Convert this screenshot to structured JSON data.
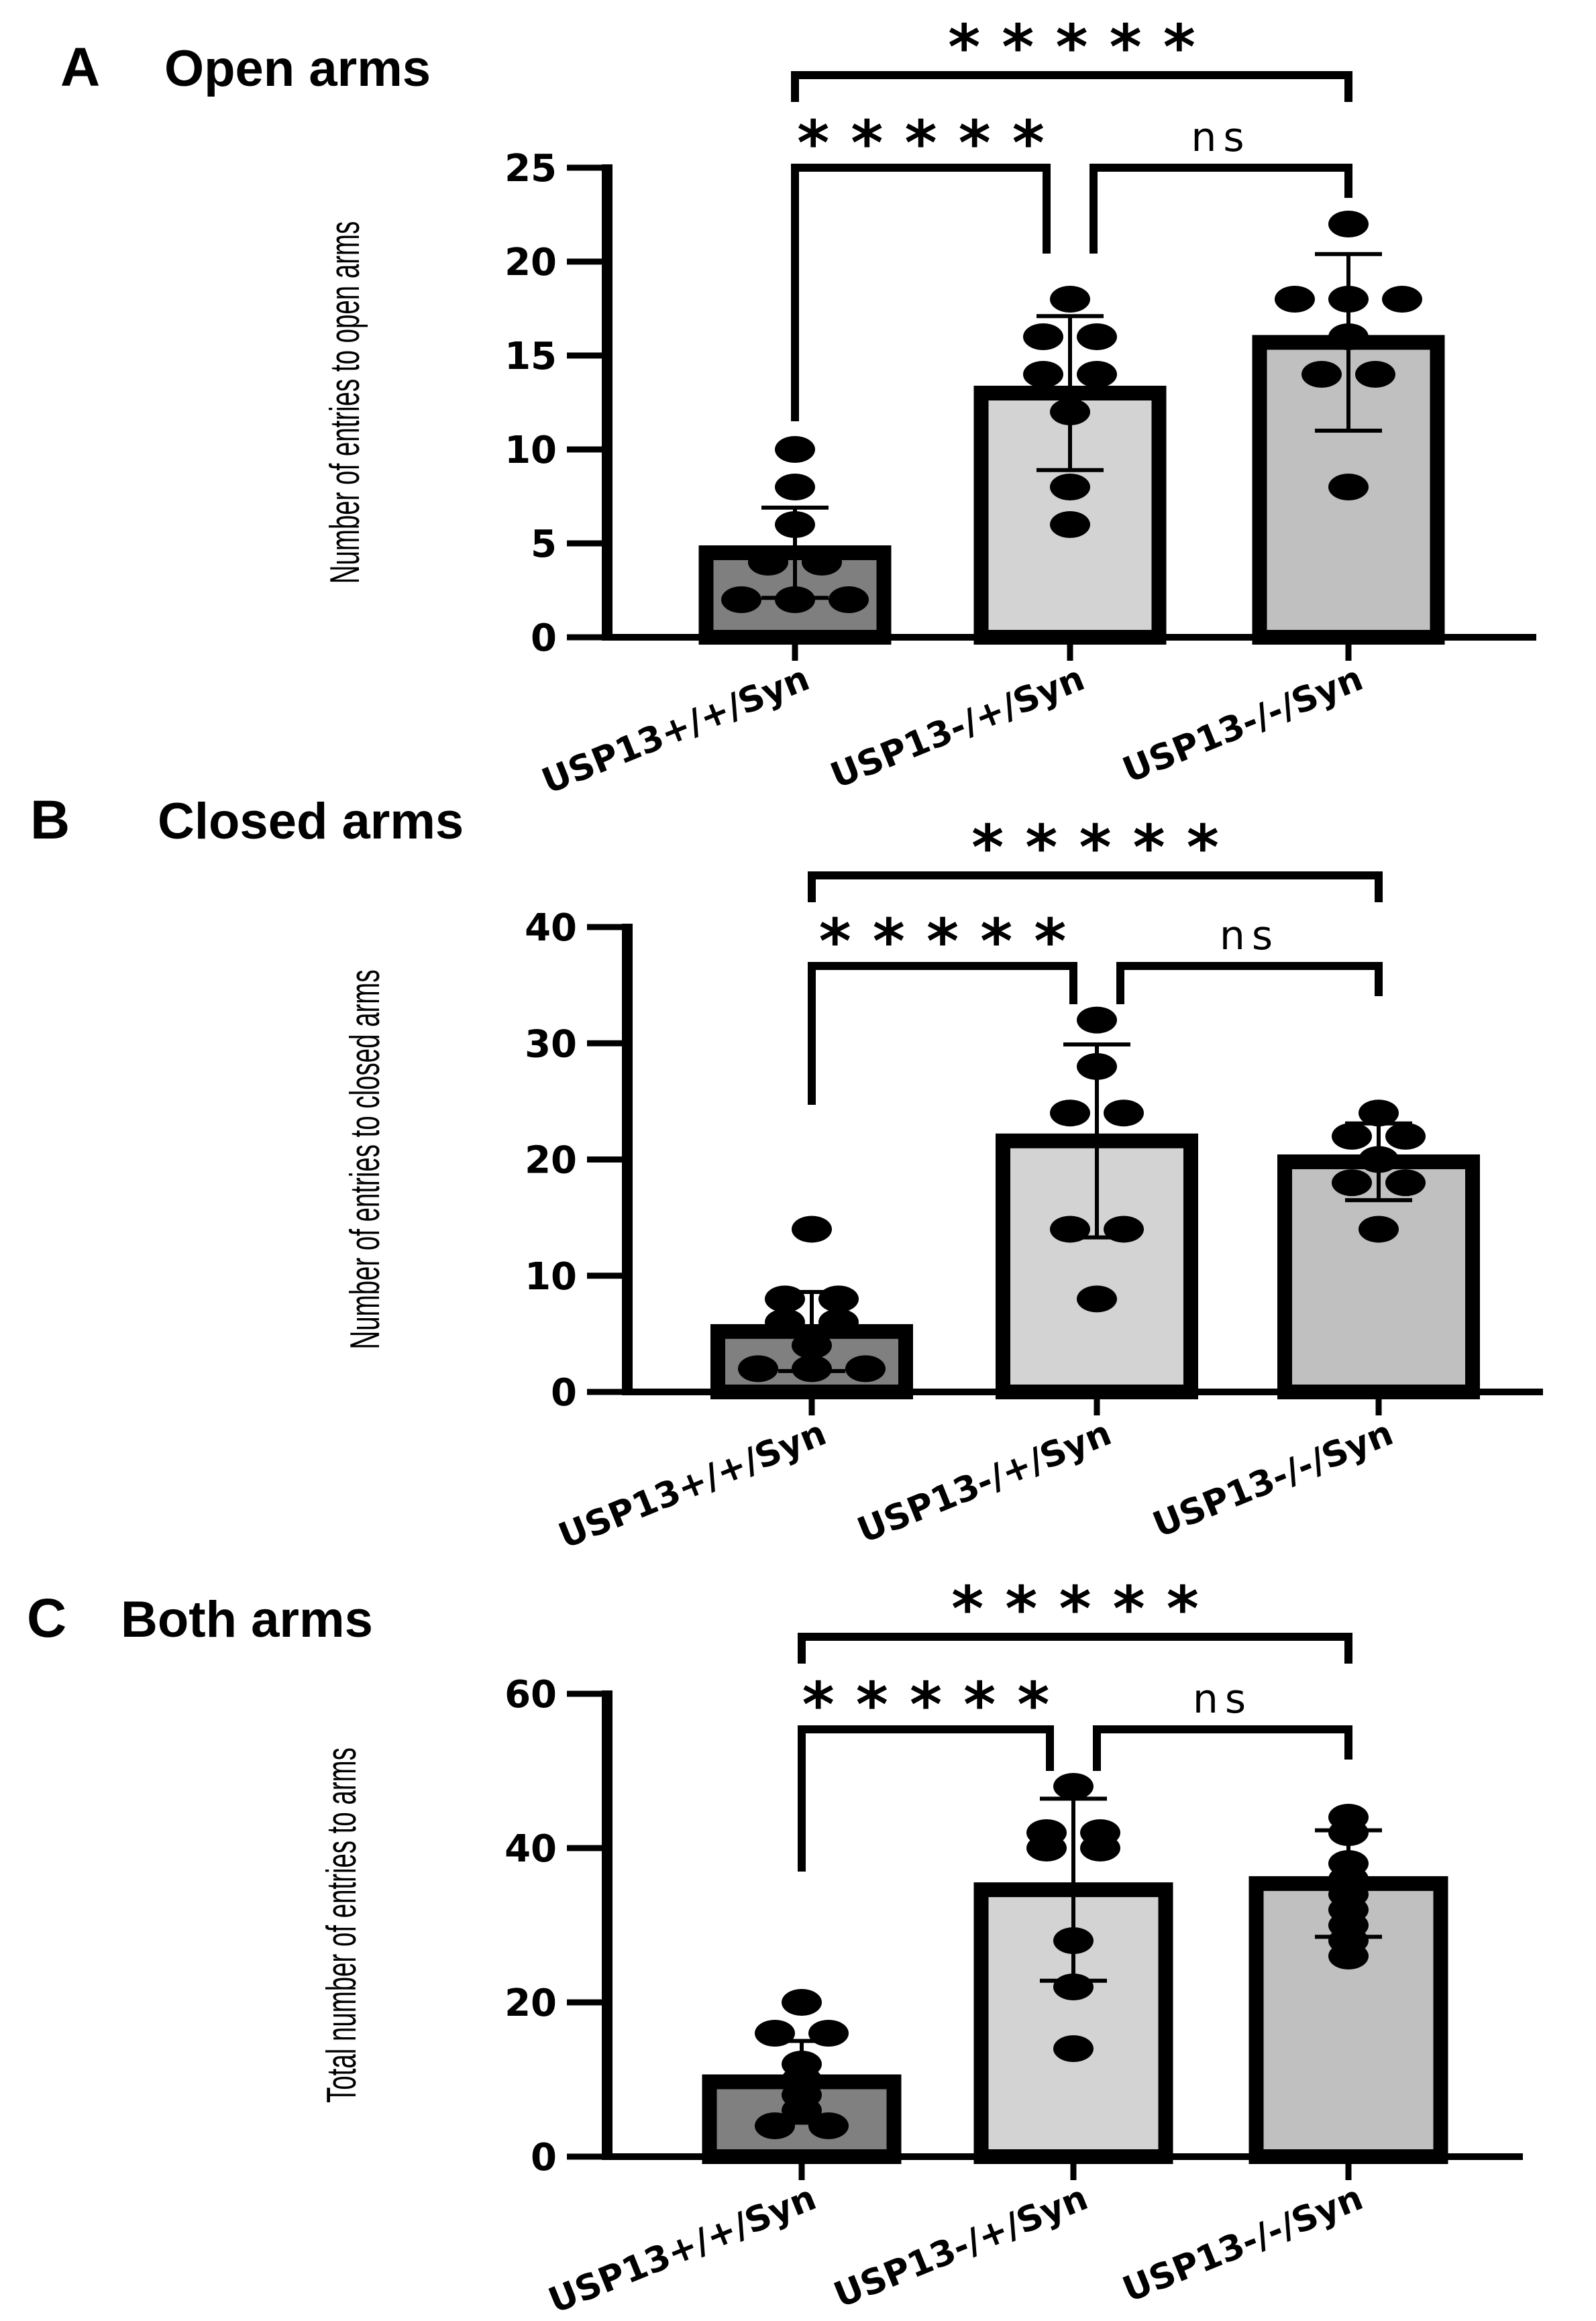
{
  "chart_data": [
    {
      "type": "bar",
      "panel_letter": "A",
      "title": "Open arms",
      "ylabel": "Number of entries to open arms",
      "xlabel": "",
      "categories": [
        "USP13+/+/Syn",
        "USP13-/+/Syn",
        "USP13-/-/Syn"
      ],
      "values": [
        4.5,
        13.0,
        15.7
      ],
      "error": [
        2.4,
        4.1,
        4.7
      ],
      "points": [
        [
          10,
          8,
          6,
          4,
          4,
          2,
          2,
          2
        ],
        [
          18,
          16,
          16,
          14,
          14,
          12,
          8,
          6
        ],
        [
          22,
          18,
          18,
          18,
          16,
          14,
          14,
          8
        ]
      ],
      "bar_colors": [
        "#7f7f7f",
        "#d3d3d3",
        "#c0c0c0"
      ],
      "ylim": [
        0,
        25
      ],
      "yticks": [
        0,
        5,
        10,
        15,
        20,
        25
      ],
      "ytick_labels": [
        "0",
        "5",
        "10",
        "15",
        "20",
        "25"
      ],
      "comparisons": [
        {
          "groups": [
            0,
            2
          ],
          "label": "* * * * *"
        },
        {
          "groups": [
            0,
            1
          ],
          "label": "* * * * *"
        },
        {
          "groups": [
            1,
            2
          ],
          "label": "ns"
        }
      ]
    },
    {
      "type": "bar",
      "panel_letter": "B",
      "title": "Closed arms",
      "ylabel": "Number of entries to closed arms",
      "xlabel": "",
      "categories": [
        "USP13+/+/Syn",
        "USP13-/+/Syn",
        "USP13-/-/Syn"
      ],
      "values": [
        5.2,
        21.6,
        19.8
      ],
      "error": [
        3.4,
        8.3,
        3.3
      ],
      "points": [
        [
          14,
          8,
          8,
          6,
          6,
          4,
          2,
          2,
          2
        ],
        [
          32,
          28,
          24,
          24,
          14,
          14,
          8
        ],
        [
          24,
          22,
          22,
          20,
          18,
          18,
          14
        ]
      ],
      "bar_colors": [
        "#808080",
        "#d3d3d3",
        "#c0c0c0"
      ],
      "ylim": [
        0,
        40
      ],
      "yticks": [
        0,
        10,
        20,
        30,
        40
      ],
      "ytick_labels": [
        "0",
        "10",
        "20",
        "30",
        "40"
      ],
      "comparisons": [
        {
          "groups": [
            0,
            2
          ],
          "label": "* * * * *"
        },
        {
          "groups": [
            0,
            1
          ],
          "label": "* * * * *"
        },
        {
          "groups": [
            1,
            2
          ],
          "label": "ns"
        }
      ]
    },
    {
      "type": "bar",
      "panel_letter": "C",
      "title": "Both arms",
      "ylabel": "Total number of entries to arms",
      "xlabel": "",
      "categories": [
        "USP13+/+/Syn",
        "USP13-/+/Syn",
        "USP13-/-/Syn"
      ],
      "values": [
        9.7,
        34.6,
        35.4
      ],
      "error": [
        5.3,
        11.8,
        6.9
      ],
      "points": [
        [
          20,
          16,
          16,
          12,
          10,
          8,
          6,
          4,
          4
        ],
        [
          48,
          42,
          42,
          40,
          40,
          28,
          22,
          14
        ],
        [
          44,
          42,
          38,
          36,
          34,
          32,
          30,
          28,
          26
        ]
      ],
      "bar_colors": [
        "#808080",
        "#d3d3d3",
        "#c0c0c0"
      ],
      "ylim": [
        0,
        60
      ],
      "yticks": [
        0,
        20,
        40,
        60
      ],
      "ytick_labels": [
        "0",
        "20",
        "40",
        "60"
      ],
      "comparisons": [
        {
          "groups": [
            0,
            2
          ],
          "label": "* * * * *"
        },
        {
          "groups": [
            0,
            1
          ],
          "label": "* * * * *"
        },
        {
          "groups": [
            1,
            2
          ],
          "label": "ns"
        }
      ]
    }
  ]
}
